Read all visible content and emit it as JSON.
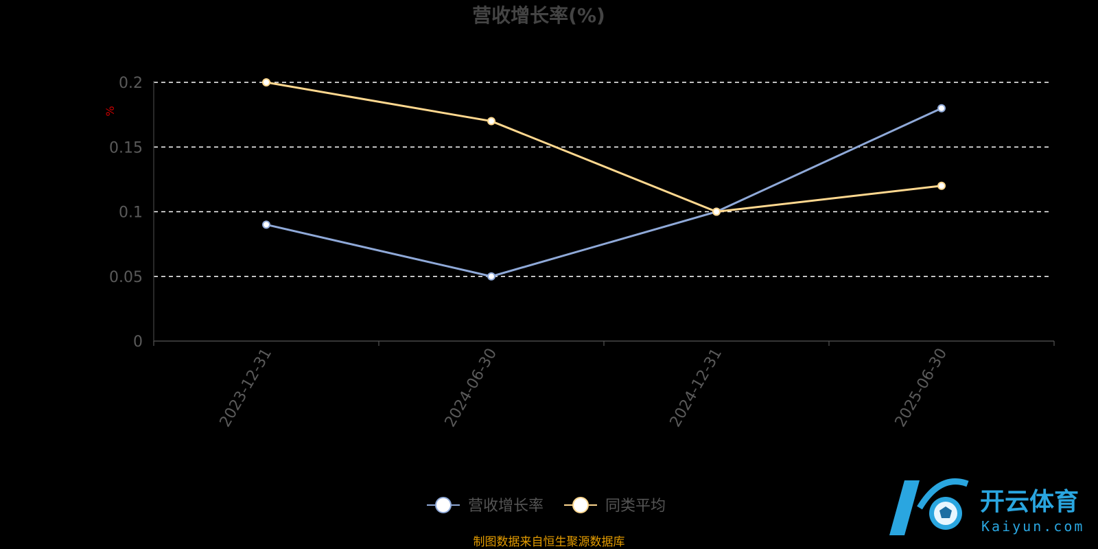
{
  "chart_data": {
    "type": "line",
    "title": "营收增长率(%)",
    "ylabel": "%",
    "categories": [
      "2023-12-31",
      "2024-06-30",
      "2024-12-31",
      "2025-06-30"
    ],
    "series": [
      {
        "name": "营收增长率",
        "values": [
          0.09,
          0.05,
          0.1,
          0.18
        ],
        "color": "#8fa9d8"
      },
      {
        "name": "同类平均",
        "values": [
          0.2,
          0.17,
          0.1,
          0.12
        ],
        "color": "#ffd88f"
      }
    ],
    "ylim": [
      0,
      0.2
    ],
    "yticks": [
      "0",
      "0.05",
      "0.1",
      "0.15",
      "0.2"
    ],
    "grid": true,
    "legend": "bottom-center"
  },
  "source_note": "制图数据来自恒生聚源数据库",
  "watermark": {
    "cn": "开云体育",
    "en": "Kaiyun.com",
    "accent": "#2aa6e0"
  }
}
